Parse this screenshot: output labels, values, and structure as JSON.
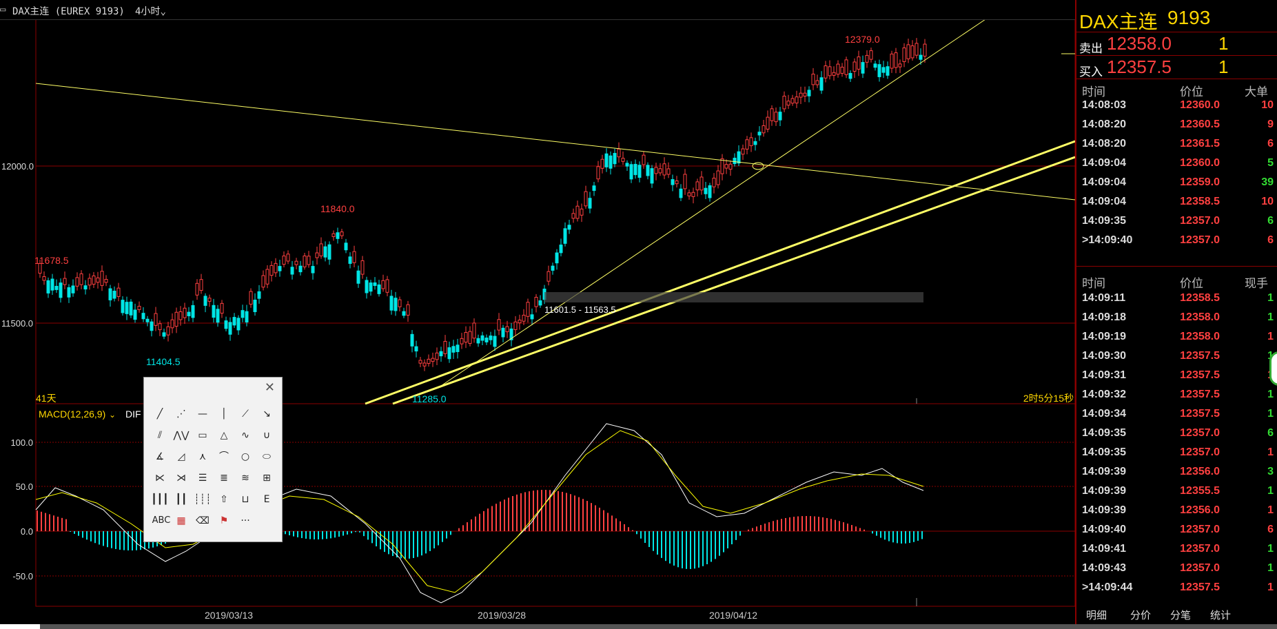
{
  "header": {
    "symbol_title": "DAX主连 (EUREX 9193)",
    "period": "4小时"
  },
  "colors": {
    "up": "#ff4040",
    "down": "#00e5e5",
    "trendline": "#ffff66",
    "macd_dif": "#ffffff",
    "macd_dea": "#ffff00",
    "panel_border": "#8b0000",
    "label_yellow": "#ffd700"
  },
  "main_chart": {
    "y_ticks": [
      "12000.0",
      "11500.0"
    ],
    "annotations": {
      "high_recent": "12379.0",
      "high_mid": "11840.0",
      "left_high": "11678.5",
      "low_left": "11404.5",
      "low_mid": "11285.0",
      "range_box": "11601.5 - 11563.5"
    },
    "days_label": "41天",
    "countdown": "2时5分15秒",
    "x_ticks": [
      "2019/03/13",
      "2019/03/28",
      "2019/04/12"
    ]
  },
  "macd": {
    "label": "MACD(12,26,9)",
    "dif_label": "DIF",
    "y_ticks": [
      "100.0",
      "50.0",
      "0.0",
      "-50.0"
    ]
  },
  "right_panel": {
    "symbol": "DAX主连",
    "code": "9193",
    "sell_label": "卖出",
    "sell_price": "12358.0",
    "sell_vol": "1",
    "buy_label": "买入",
    "buy_price": "12357.5",
    "buy_vol": "1",
    "big_orders": {
      "headers": [
        "时间",
        "价位",
        "大单"
      ],
      "rows": [
        {
          "time": "14:08:03",
          "price": "12360.0",
          "qty": "10",
          "qty_color": "up"
        },
        {
          "time": "14:08:20",
          "price": "12360.5",
          "qty": "9",
          "qty_color": "up"
        },
        {
          "time": "14:08:20",
          "price": "12361.5",
          "qty": "6",
          "qty_color": "up"
        },
        {
          "time": "14:09:04",
          "price": "12360.0",
          "qty": "5",
          "qty_color": "down"
        },
        {
          "time": "14:09:04",
          "price": "12359.0",
          "qty": "39",
          "qty_color": "down"
        },
        {
          "time": "14:09:04",
          "price": "12358.5",
          "qty": "10",
          "qty_color": "up"
        },
        {
          "time": "14:09:35",
          "price": "12357.0",
          "qty": "6",
          "qty_color": "down"
        },
        {
          "time": ">14:09:40",
          "price": "12357.0",
          "qty": "6",
          "qty_color": "up"
        }
      ]
    },
    "ticks": {
      "headers": [
        "时间",
        "价位",
        "现手"
      ],
      "rows": [
        {
          "time": "14:09:11",
          "price": "12358.5",
          "qty": "1",
          "qty_color": "down"
        },
        {
          "time": "14:09:18",
          "price": "12358.0",
          "qty": "1",
          "qty_color": "down"
        },
        {
          "time": "14:09:19",
          "price": "12358.0",
          "qty": "1",
          "qty_color": "up"
        },
        {
          "time": "14:09:30",
          "price": "12357.5",
          "qty": "1",
          "qty_color": "down"
        },
        {
          "time": "14:09:31",
          "price": "12357.5",
          "qty": "1",
          "qty_color": "up"
        },
        {
          "time": "14:09:32",
          "price": "12357.5",
          "qty": "1",
          "qty_color": "down"
        },
        {
          "time": "14:09:34",
          "price": "12357.5",
          "qty": "1",
          "qty_color": "down"
        },
        {
          "time": "14:09:35",
          "price": "12357.0",
          "qty": "6",
          "qty_color": "down"
        },
        {
          "time": "14:09:35",
          "price": "12357.0",
          "qty": "1",
          "qty_color": "up"
        },
        {
          "time": "14:09:39",
          "price": "12356.0",
          "qty": "3",
          "qty_color": "down"
        },
        {
          "time": "14:09:39",
          "price": "12355.5",
          "qty": "1",
          "qty_color": "down"
        },
        {
          "time": "14:09:39",
          "price": "12356.0",
          "qty": "1",
          "qty_color": "up"
        },
        {
          "time": "14:09:40",
          "price": "12357.0",
          "qty": "6",
          "qty_color": "up"
        },
        {
          "time": "14:09:41",
          "price": "12357.0",
          "qty": "1",
          "qty_color": "down"
        },
        {
          "time": "14:09:43",
          "price": "12357.0",
          "qty": "1",
          "qty_color": "down"
        },
        {
          "time": ">14:09:44",
          "price": "12357.5",
          "qty": "1",
          "qty_color": "up"
        }
      ]
    },
    "tabs": [
      "明细",
      "分价",
      "分笔",
      "统计"
    ]
  },
  "toolbox": {
    "close": "✕",
    "icons": [
      [
        "line-tool-icon",
        "ray-dotted-icon",
        "horizontal-line-icon",
        "vertical-line-icon",
        "segment-icon",
        "arrow-icon"
      ],
      [
        "parallel-lines-icon",
        "polyline-icon",
        "rectangle-icon",
        "triangle-icon",
        "wave-icon",
        "cup-icon"
      ],
      [
        "gann-angle-icon",
        "right-triangle-icon",
        "peak-icon",
        "arc-icon",
        "circle-icon",
        "ellipse-icon"
      ],
      [
        "speed-fan-icon",
        "gann-fan-icon",
        "fib-retracement-icon",
        "fib-extension-icon",
        "resistance-lines-icon",
        "fib-channel-icon"
      ],
      [
        "fib-timezone-icon",
        "cycle-lines-icon",
        "time-lines-icon",
        "up-arrow-icon",
        "ruler-icon",
        "measure-icon"
      ],
      [
        "text-icon",
        "color-palette-icon",
        "eraser-icon",
        "template-icon",
        "more-icon"
      ]
    ],
    "text_label": "ABC",
    "more_label": "···"
  }
}
